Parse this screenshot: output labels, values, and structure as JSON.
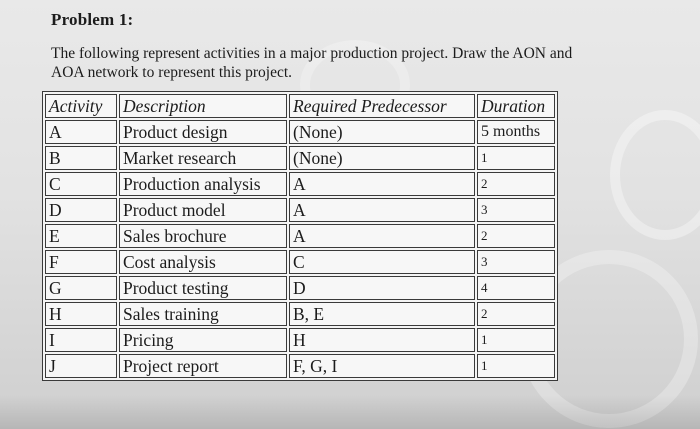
{
  "problem_title": "Problem 1:",
  "description_line1": "The following represent activities in a major production project. Draw the AON and",
  "description_line2": "AOA network to represent this project.",
  "table": {
    "headers": {
      "activity": "Activity",
      "description": "Description",
      "predecessor": "Required Predecessor",
      "duration": "Duration"
    },
    "rows": [
      {
        "activity": "A",
        "description": "Product design",
        "predecessor": "(None)",
        "duration": "5 months"
      },
      {
        "activity": "B",
        "description": "Market research",
        "predecessor": "(None)",
        "duration": "1"
      },
      {
        "activity": "C",
        "description": "Production analysis",
        "predecessor": "A",
        "duration": "2"
      },
      {
        "activity": "D",
        "description": "Product model",
        "predecessor": "A",
        "duration": "3"
      },
      {
        "activity": "E",
        "description": "Sales brochure",
        "predecessor": "A",
        "duration": "2"
      },
      {
        "activity": "F",
        "description": "Cost analysis",
        "predecessor": "C",
        "duration": "3"
      },
      {
        "activity": "G",
        "description": "Product testing",
        "predecessor": "D",
        "duration": "4"
      },
      {
        "activity": "H",
        "description": "Sales training",
        "predecessor": "B, E",
        "duration": "2"
      },
      {
        "activity": "I",
        "description": "Pricing",
        "predecessor": "H",
        "duration": "1"
      },
      {
        "activity": "J",
        "description": "Project report",
        "predecessor": "F, G, I",
        "duration": "1"
      }
    ]
  }
}
